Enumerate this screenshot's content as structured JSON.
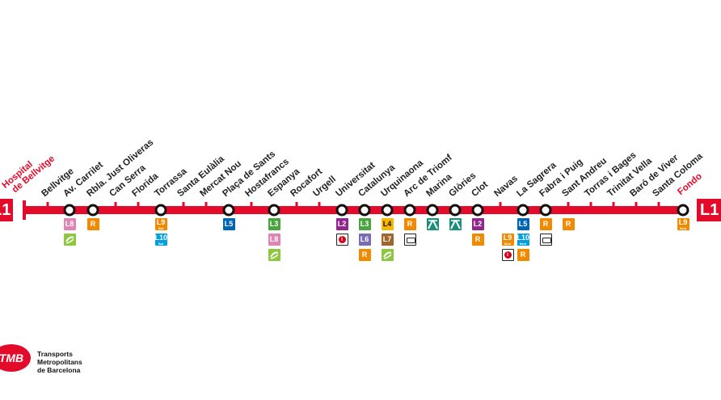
{
  "line": {
    "name": "L1",
    "color": "#e30a2a",
    "terminus_start": [
      "Hospital",
      "de Bellvitge"
    ],
    "terminus_end": "Fondo"
  },
  "stations": [
    {
      "name": "Bellvitge",
      "transfers": []
    },
    {
      "name": "Av. Carrilet",
      "transfers": [
        {
          "label": "L8",
          "color": "#e084b5"
        },
        {
          "label": "",
          "color": "#8dc63f",
          "icon": "fgc-icon"
        }
      ]
    },
    {
      "name": "Rbla. Just Oliveras",
      "transfers": [
        {
          "label": "R",
          "color": "#f08a00"
        }
      ]
    },
    {
      "name": "Can Serra",
      "transfers": []
    },
    {
      "name": "Florida",
      "transfers": []
    },
    {
      "name": "Torrassa",
      "transfers": [
        {
          "label": "L9",
          "sub": "Sud",
          "color": "#f08a00"
        },
        {
          "label": "L10",
          "sub": "Sud",
          "color": "#00a0df"
        }
      ]
    },
    {
      "name": "Santa Eulàlia",
      "transfers": []
    },
    {
      "name": "Mercat Nou",
      "transfers": []
    },
    {
      "name": "Plaça de Sants",
      "transfers": [
        {
          "label": "L5",
          "color": "#0066b3"
        }
      ]
    },
    {
      "name": "Hostafrancs",
      "transfers": []
    },
    {
      "name": "Espanya",
      "transfers": [
        {
          "label": "L3",
          "color": "#4aa540"
        },
        {
          "label": "L8",
          "color": "#e084b5"
        },
        {
          "label": "",
          "color": "#8dc63f",
          "icon": "fgc-icon"
        }
      ]
    },
    {
      "name": "Rocafort",
      "transfers": []
    },
    {
      "name": "Urgell",
      "transfers": []
    },
    {
      "name": "Universitat",
      "transfers": [
        {
          "label": "L2",
          "color": "#93258e"
        },
        {
          "label": "",
          "color": "#ffffff",
          "icon": "info-icon"
        }
      ]
    },
    {
      "name": "Catalunya",
      "transfers": [
        {
          "label": "L3",
          "color": "#4aa540"
        },
        {
          "label": "L6",
          "color": "#7a6bb5"
        },
        {
          "label": "R",
          "color": "#f08a00"
        }
      ]
    },
    {
      "name": "Urquinaona",
      "transfers": [
        {
          "label": "L4",
          "color": "#f5b700",
          "dark": true
        },
        {
          "label": "L7",
          "color": "#a0652a"
        },
        {
          "label": "",
          "color": "#8dc63f",
          "icon": "fgc-icon"
        }
      ]
    },
    {
      "name": "Arc de Triomf",
      "transfers": [
        {
          "label": "R",
          "color": "#f08a00"
        },
        {
          "label": "",
          "color": "#ffffff",
          "icon": "bus-icon"
        }
      ]
    },
    {
      "name": "Marina",
      "transfers": [
        {
          "label": "",
          "color": "#1b8e7a",
          "icon": "tram-icon"
        }
      ]
    },
    {
      "name": "Glòries",
      "transfers": [
        {
          "label": "",
          "color": "#1b8e7a",
          "icon": "tram-icon"
        }
      ]
    },
    {
      "name": "Clot",
      "transfers": [
        {
          "label": "L2",
          "color": "#93258e"
        },
        {
          "label": "R",
          "color": "#f08a00"
        }
      ]
    },
    {
      "name": "Navas",
      "transfers": []
    },
    {
      "name": "La Sagrera",
      "transfers": [
        {
          "label": "L5",
          "color": "#0066b3"
        },
        {
          "label": "L10",
          "sub": "Nord",
          "color": "#00a0df"
        },
        {
          "label": "R",
          "color": "#f08a00"
        }
      ]
    },
    {
      "name": "Fabra i Puig",
      "transfers": [
        {
          "label": "R",
          "color": "#f08a00"
        },
        {
          "label": "",
          "color": "#ffffff",
          "icon": "bus-icon"
        }
      ]
    },
    {
      "name": "Sant Andreu",
      "transfers": [
        {
          "label": "R",
          "color": "#f08a00"
        }
      ]
    },
    {
      "name": "Torras i Bages",
      "transfers": []
    },
    {
      "name": "Trinitat Vella",
      "transfers": []
    },
    {
      "name": "Baró de Viver",
      "transfers": []
    },
    {
      "name": "Santa Coloma",
      "transfers": []
    }
  ],
  "fondo_transfers": [
    {
      "label": "L9",
      "sub": "Nord",
      "color": "#f08a00"
    }
  ],
  "extra_badges": [
    {
      "label": "L9",
      "sub": "Nord",
      "color": "#f08a00"
    },
    {
      "label": "",
      "color": "#ffffff",
      "icon": "info-icon"
    }
  ],
  "logo": {
    "mark": "TMB",
    "text": [
      "Transports",
      "Metropolitans",
      "de Barcelona"
    ]
  }
}
